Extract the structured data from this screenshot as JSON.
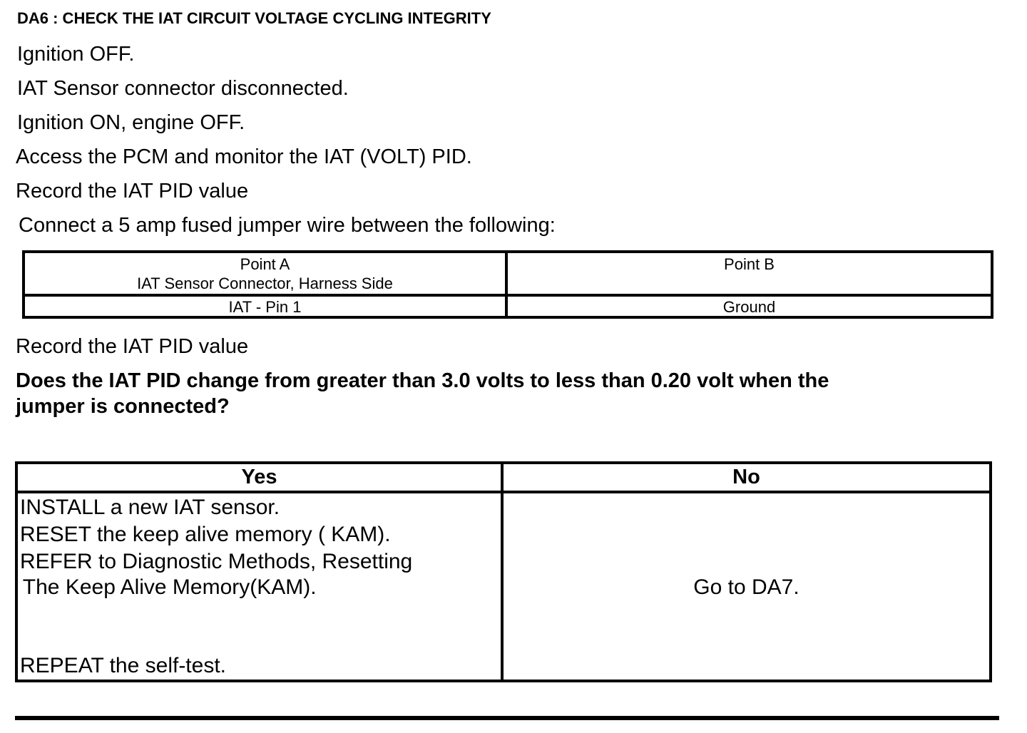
{
  "title": "DA6 : CHECK THE IAT CIRCUIT VOLTAGE CYCLING INTEGRITY",
  "steps": [
    "Ignition OFF.",
    "IAT Sensor connector disconnected.",
    "Ignition ON, engine OFF.",
    "Access the PCM and monitor the  IAT (VOLT) PID.",
    "Record the IAT  PID value",
    "Connect a 5 amp fused jumper wire between the following:"
  ],
  "jumper_table": {
    "headers": [
      "Point A",
      "Point B"
    ],
    "header_sub": "IAT Sensor Connector, Harness Side",
    "row": [
      "IAT - Pin 1",
      "Ground"
    ]
  },
  "after_step": "Record the IAT  PID value",
  "question": [
    "Does the IAT  PID change from greater than 3.0 volts to less than 0.20 volt when the",
    "jumper is connected?"
  ],
  "answer_table": {
    "headers": [
      "Yes",
      "No"
    ],
    "yes_lines": [
      "INSTALL a new IAT sensor.",
      "RESET the keep alive memory ( KAM).",
      "REFER to Diagnostic Methods, Resetting",
      " The Keep Alive Memory(KAM).",
      "REPEAT the self-test."
    ],
    "no_text": "Go to DA7."
  }
}
